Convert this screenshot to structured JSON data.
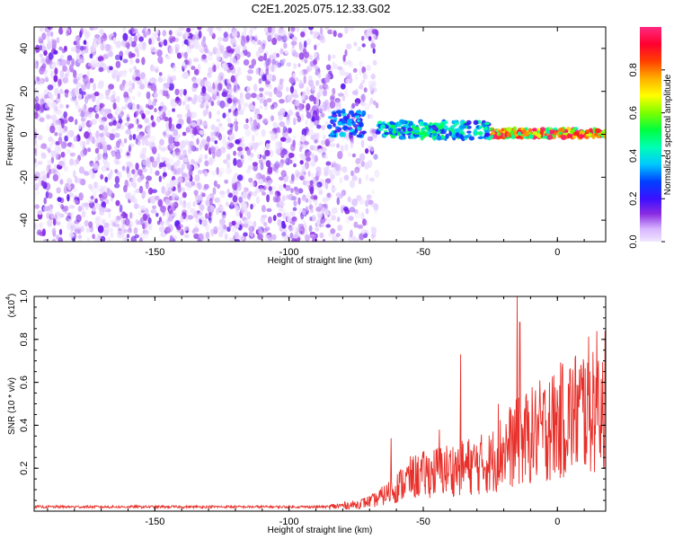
{
  "title": "C2E1.2025.075.12.33.G02",
  "colors": {
    "snr_line": "#e8302a",
    "spectrogram_low": "#cfb0f5",
    "spectrogram_high": "#ff0000"
  },
  "chart_data": [
    {
      "type": "heatmap",
      "name": "spectrogram",
      "xlabel": "Height of straight line (km)",
      "ylabel": "Frequency (Hz)",
      "xlim": [
        -195,
        18
      ],
      "ylim": [
        -50,
        50
      ],
      "xticks": [
        -150,
        -100,
        -50,
        0
      ],
      "xtick_labels": [
        "-150",
        "-100",
        "-50",
        "0"
      ],
      "yticks": [
        -40,
        -20,
        0,
        20,
        40
      ],
      "ytick_labels": [
        "-40",
        "-20",
        "0",
        "20",
        "40"
      ],
      "colorbar": {
        "label": "Normalized spectral amplitude",
        "range": [
          0,
          1
        ],
        "ticks": [
          0.0,
          0.2,
          0.4,
          0.6,
          0.8
        ],
        "tick_labels": [
          "0.0",
          "0.2",
          "0.4",
          "0.6",
          "0.8"
        ],
        "colormap": "rainbow"
      },
      "regions": [
        {
          "x_range": [
            -195,
            -67
          ],
          "description": "broadband noise, amplitude 0.0–0.2 (violet)"
        },
        {
          "x_range": [
            -85,
            -72
          ],
          "freq_center": 5,
          "freq_halfwidth": 6,
          "amplitude": 0.35
        },
        {
          "x_range": [
            -67,
            -25
          ],
          "freq_center": 2,
          "freq_halfwidth": 4,
          "amplitude": 0.45
        },
        {
          "x_range": [
            -25,
            18
          ],
          "freq_center": 0.5,
          "freq_halfwidth": 2,
          "amplitude": 0.9
        }
      ]
    },
    {
      "type": "line",
      "name": "snr",
      "xlabel": "Height of straight line (km)",
      "ylabel": "SNR (10 * v/v)",
      "yscale_label": "(x10",
      "yscale_exponent": "4",
      "xlim": [
        -195,
        18
      ],
      "ylim": [
        0,
        1.0
      ],
      "xticks": [
        -150,
        -100,
        -50,
        0
      ],
      "xtick_labels": [
        "-150",
        "-100",
        "-50",
        "0"
      ],
      "yticks": [
        0.2,
        0.4,
        0.6,
        0.8,
        1.0
      ],
      "ytick_labels": [
        "0.2",
        "0.4",
        "0.6",
        "0.8",
        "1.0"
      ],
      "trend": {
        "x": [
          -195,
          -100,
          -85,
          -75,
          -68,
          -62,
          -55,
          -45,
          -35,
          -25,
          -20,
          -10,
          0,
          10,
          18
        ],
        "y": [
          0.02,
          0.02,
          0.02,
          0.03,
          0.05,
          0.09,
          0.15,
          0.18,
          0.2,
          0.22,
          0.28,
          0.34,
          0.4,
          0.47,
          0.52
        ]
      },
      "peaks": [
        {
          "x": -62,
          "y": 0.34
        },
        {
          "x": -44,
          "y": 0.38
        },
        {
          "x": -36,
          "y": 0.73
        },
        {
          "x": -22,
          "y": 0.5
        },
        {
          "x": -15,
          "y": 1.0
        },
        {
          "x": -14,
          "y": 0.88
        },
        {
          "x": -3,
          "y": 0.6
        },
        {
          "x": 15,
          "y": 0.66
        }
      ]
    }
  ]
}
